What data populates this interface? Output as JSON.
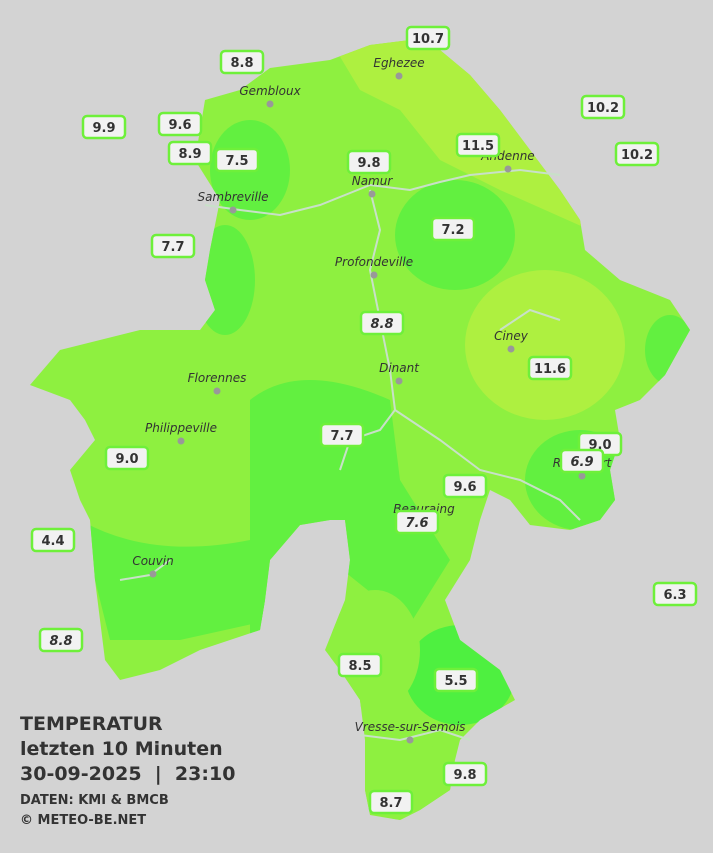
{
  "title": "TEMPERATUR",
  "subtitle": "letzten 10 Minuten",
  "timestamp": "30-09-2025  |  23:10",
  "source": "DATEN: KMI & BMCB",
  "credit": "© METEO-BE.NET",
  "cities": [
    "Eghezee",
    "Gembloux",
    "Andenne",
    "Sambreville",
    "Namur",
    "Profondeville",
    "Ciney",
    "Dinant",
    "Florennes",
    "Philippeville",
    "Rochefort",
    "Beauraing",
    "Couvin",
    "Vresse-sur-Semois"
  ],
  "stations": [
    "10.7",
    "8.8",
    "9.9",
    "9.6",
    "8.9",
    "7.5",
    "9.8",
    "11.5",
    "10.2",
    "10.2",
    "7.7",
    "7.2",
    "8.8",
    "11.6",
    "7.7",
    "9.0",
    "6.9",
    "9.0",
    "9.6",
    "7.6",
    "4.4",
    "6.3",
    "8.8",
    "8.5",
    "5.5",
    "9.8",
    "8.7"
  ]
}
